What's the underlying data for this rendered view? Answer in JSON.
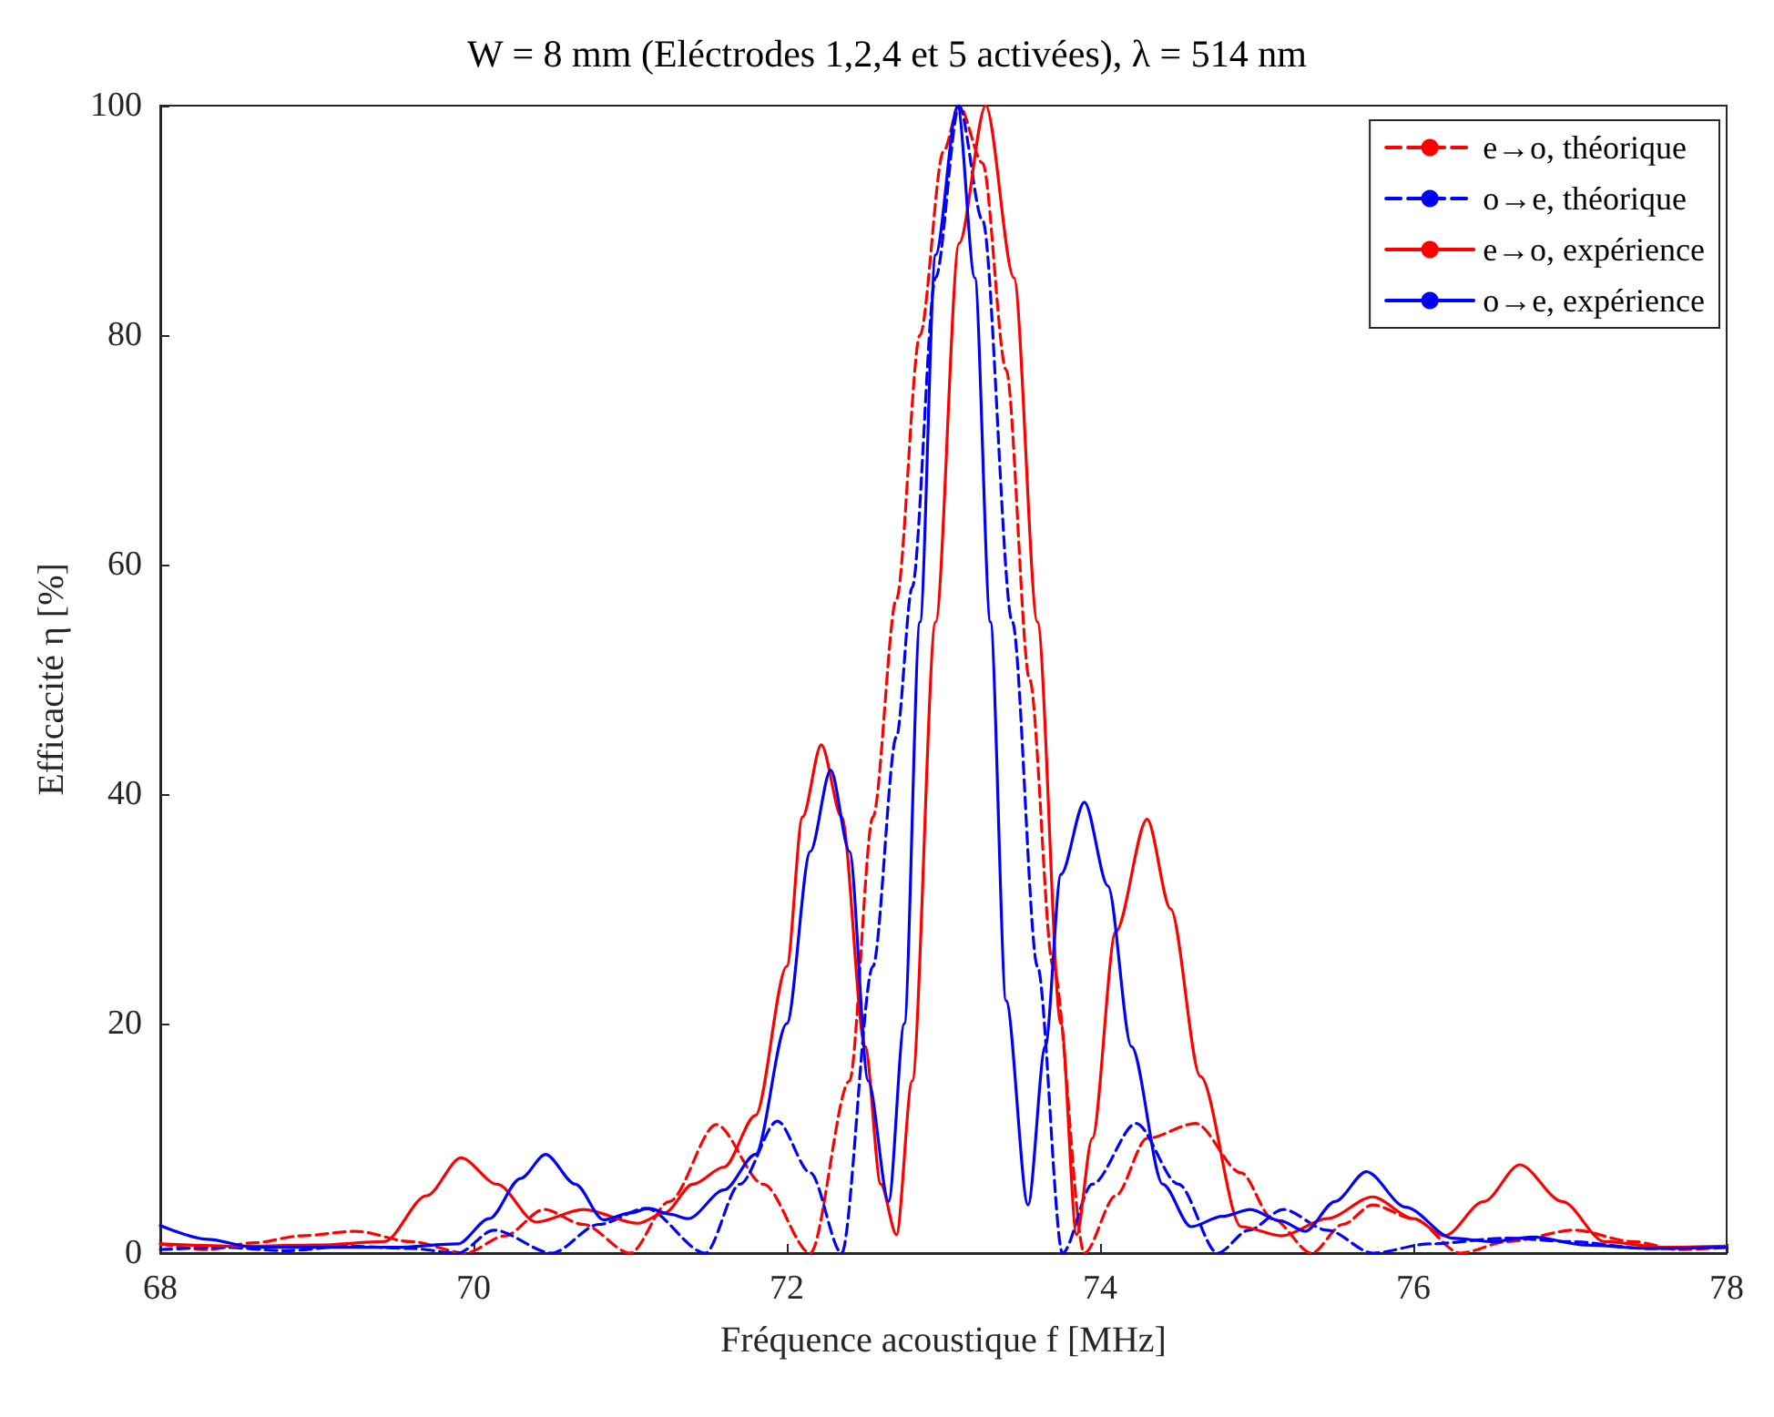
{
  "chart_data": {
    "type": "line",
    "title": "W = 8 mm (Eléctrodes 1,2,4 et 5 activées), λ = 514 nm",
    "xlabel": "Fréquence acoustique f [MHz]",
    "ylabel": "Efficacité η [%]",
    "xlim": [
      68,
      78
    ],
    "xticks": [
      68,
      70,
      72,
      74,
      76,
      78
    ],
    "ylim": [
      0,
      100
    ],
    "yticks": [
      0,
      20,
      40,
      60,
      80,
      100
    ],
    "grid": false,
    "legend": "top right",
    "marker": "none",
    "series": [
      {
        "name": "e→o, théorique",
        "color": "#ff0000",
        "line_style": "dashed",
        "x": [
          68,
          68.3,
          68.6,
          68.9,
          69.25,
          69.6,
          69.95,
          70.2,
          70.45,
          70.7,
          71.0,
          71.25,
          71.55,
          71.85,
          72.15,
          72.4,
          72.55,
          72.7,
          72.85,
          73.0,
          73.1,
          73.25,
          73.4,
          73.55,
          73.7,
          73.9,
          74.1,
          74.3,
          74.61,
          74.9,
          75.1,
          75.35,
          75.55,
          75.74,
          76.0,
          76.3,
          76.6,
          77.03,
          77.4,
          77.7,
          78
        ],
        "values": [
          0.8,
          0.3,
          0.9,
          1.5,
          1.9,
          1.0,
          0,
          1.5,
          3.8,
          2.5,
          0,
          4.5,
          11.2,
          6,
          0,
          15,
          38,
          57,
          80,
          96,
          100,
          95,
          77,
          50,
          25,
          0,
          5,
          10,
          11.3,
          7,
          3,
          0,
          2.5,
          4.2,
          3,
          0,
          1,
          2,
          1,
          0.3,
          0.5
        ]
      },
      {
        "name": "o→e, théorique",
        "color": "#0000ff",
        "line_style": "dashed",
        "x": [
          68,
          68.4,
          68.8,
          69.2,
          69.6,
          69.9,
          70.13,
          70.5,
          70.8,
          71.1,
          71.48,
          71.7,
          71.94,
          72.15,
          72.35,
          72.55,
          72.7,
          72.8,
          72.95,
          73.1,
          73.25,
          73.44,
          73.6,
          73.76,
          73.95,
          74.23,
          74.5,
          74.75,
          74.95,
          75.17,
          75.45,
          75.74,
          76.1,
          76.6,
          77.0,
          77.5,
          78
        ],
        "values": [
          0.3,
          0.5,
          0.2,
          0.6,
          0.4,
          0,
          2,
          0,
          2.5,
          3.9,
          0,
          6,
          11.5,
          7,
          0,
          25,
          45,
          58,
          85,
          100,
          90,
          55,
          25,
          0,
          6,
          11.3,
          6,
          0,
          2,
          3.8,
          2,
          0,
          0.8,
          1.3,
          1,
          0.4,
          0.5
        ]
      },
      {
        "name": "e→o, expérience",
        "color": "#ff0000",
        "line_style": "solid",
        "x": [
          68,
          68.5,
          69.0,
          69.43,
          69.7,
          69.92,
          70.15,
          70.4,
          70.7,
          71.05,
          71.22,
          71.4,
          71.6,
          71.8,
          72.0,
          72.1,
          72.22,
          72.35,
          72.5,
          72.6,
          72.7,
          72.8,
          72.95,
          73.1,
          73.27,
          73.45,
          73.6,
          73.75,
          73.85,
          73.95,
          74.1,
          74.3,
          74.45,
          74.64,
          74.9,
          75.16,
          75.45,
          75.74,
          76.0,
          76.2,
          76.45,
          76.68,
          76.95,
          77.22,
          77.6,
          78
        ],
        "values": [
          0.8,
          0.6,
          0.7,
          1,
          5,
          8.3,
          6,
          2.7,
          3.8,
          2.6,
          3.5,
          6.0,
          7.5,
          12,
          25,
          38,
          44.3,
          38,
          18,
          6,
          1.6,
          15,
          55,
          88,
          100,
          85,
          55,
          20,
          1.6,
          10,
          28,
          37.8,
          30,
          15.4,
          2.3,
          1.5,
          3,
          4.9,
          3,
          1.5,
          4.5,
          7.7,
          4.5,
          1.0,
          0.5,
          0.6
        ]
      },
      {
        "name": "o→e, expérience",
        "color": "#0000ff",
        "line_style": "solid",
        "x": [
          68,
          68.3,
          68.6,
          69.0,
          69.5,
          69.9,
          70.1,
          70.3,
          70.46,
          70.65,
          70.83,
          71.0,
          71.12,
          71.25,
          71.37,
          71.6,
          71.8,
          72.0,
          72.15,
          72.28,
          72.4,
          72.52,
          72.65,
          72.75,
          72.85,
          72.95,
          73.09,
          73.2,
          73.3,
          73.4,
          73.54,
          73.65,
          73.75,
          73.9,
          74.05,
          74.2,
          74.4,
          74.58,
          74.78,
          74.96,
          75.15,
          75.31,
          75.5,
          75.7,
          75.95,
          76.25,
          76.5,
          76.76,
          77.1,
          77.5,
          78
        ],
        "values": [
          2.4,
          1.2,
          0.5,
          0.5,
          0.5,
          0.8,
          3,
          6.5,
          8.6,
          6,
          2.9,
          3.5,
          3.9,
          3.4,
          3.0,
          5.5,
          8.6,
          20,
          35,
          42.1,
          35,
          15,
          4.5,
          20,
          55,
          87,
          100,
          85,
          55,
          22,
          4.2,
          18,
          33,
          39.3,
          32,
          18,
          6,
          2.3,
          3.2,
          3.8,
          2.8,
          1.9,
          4.5,
          7.1,
          4,
          1.3,
          1.0,
          1.4,
          0.7,
          0.4,
          0.5
        ]
      }
    ]
  }
}
